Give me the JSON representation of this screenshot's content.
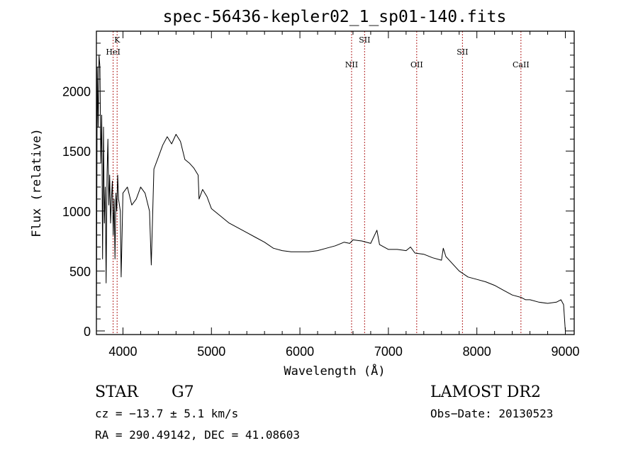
{
  "chart_data": {
    "type": "line",
    "title": "spec-56436-kepler02_1_sp01-140.fits",
    "xlabel": "Wavelength (Å)",
    "ylabel": "Flux (relative)",
    "xlim": [
      3700,
      9100
    ],
    "ylim": [
      -30,
      2500
    ],
    "x_ticks": [
      4000,
      5000,
      6000,
      7000,
      8000,
      9000
    ],
    "y_ticks": [
      0,
      500,
      1000,
      1500,
      2000
    ],
    "grid": false,
    "series": [
      {
        "color": "#000000",
        "x": [
          3700,
          3710,
          3720,
          3730,
          3740,
          3750,
          3760,
          3770,
          3780,
          3790,
          3800,
          3810,
          3820,
          3830,
          3840,
          3850,
          3860,
          3870,
          3880,
          3890,
          3900,
          3910,
          3920,
          3930,
          3940,
          3950,
          3960,
          3970,
          3980,
          3990,
          4000,
          4050,
          4100,
          4150,
          4200,
          4250,
          4300,
          4320,
          4350,
          4400,
          4450,
          4500,
          4550,
          4600,
          4650,
          4700,
          4750,
          4800,
          4850,
          4860,
          4900,
          4950,
          5000,
          5100,
          5200,
          5300,
          5400,
          5500,
          5600,
          5700,
          5800,
          5900,
          6000,
          6100,
          6200,
          6300,
          6400,
          6500,
          6563,
          6600,
          6700,
          6800,
          6870,
          6900,
          7000,
          7100,
          7200,
          7250,
          7300,
          7400,
          7500,
          7600,
          7620,
          7650,
          7700,
          7800,
          7900,
          8000,
          8100,
          8200,
          8300,
          8400,
          8500,
          8550,
          8600,
          8700,
          8800,
          8900,
          8950,
          8980,
          9000
        ],
        "y": [
          0,
          2200,
          1700,
          2300,
          2200,
          1400,
          1800,
          600,
          1700,
          900,
          1200,
          400,
          1300,
          1600,
          1050,
          1300,
          900,
          1100,
          1250,
          800,
          1100,
          600,
          1150,
          1000,
          1300,
          1100,
          1050,
          1000,
          450,
          800,
          1150,
          1200,
          1050,
          1100,
          1200,
          1150,
          1000,
          550,
          1350,
          1450,
          1550,
          1620,
          1560,
          1640,
          1580,
          1430,
          1400,
          1360,
          1300,
          1100,
          1180,
          1120,
          1020,
          960,
          900,
          860,
          820,
          780,
          740,
          690,
          670,
          660,
          660,
          660,
          670,
          690,
          710,
          740,
          730,
          760,
          750,
          730,
          840,
          720,
          680,
          680,
          670,
          700,
          650,
          640,
          610,
          590,
          690,
          620,
          580,
          500,
          450,
          430,
          410,
          380,
          340,
          300,
          280,
          260,
          260,
          240,
          230,
          240,
          260,
          220,
          0
        ]
      }
    ],
    "line_markers": [
      {
        "label": "K",
        "x": 3934,
        "label_row": 0
      },
      {
        "label": "HeI",
        "x": 3889,
        "label_row": 1
      },
      {
        "label": "NII",
        "x": 6584,
        "label_row": 2
      },
      {
        "label": "SII",
        "x": 6731,
        "label_row": 0
      },
      {
        "label": "OII",
        "x": 7320,
        "label_row": 2
      },
      {
        "label": "SII",
        "x": 7837,
        "label_row": 1
      },
      {
        "label": "CaII",
        "x": 8498,
        "label_row": 2
      }
    ],
    "marker_color": "#b22222"
  },
  "info": {
    "object_class": "STAR",
    "subclass": "G7",
    "survey": "LAMOST DR2",
    "cz": "cz = −13.7 ± 5.1 km/s",
    "obs_date": "Obs−Date: 20130523",
    "radec": "RA = 290.49142, DEC =  41.08603"
  }
}
